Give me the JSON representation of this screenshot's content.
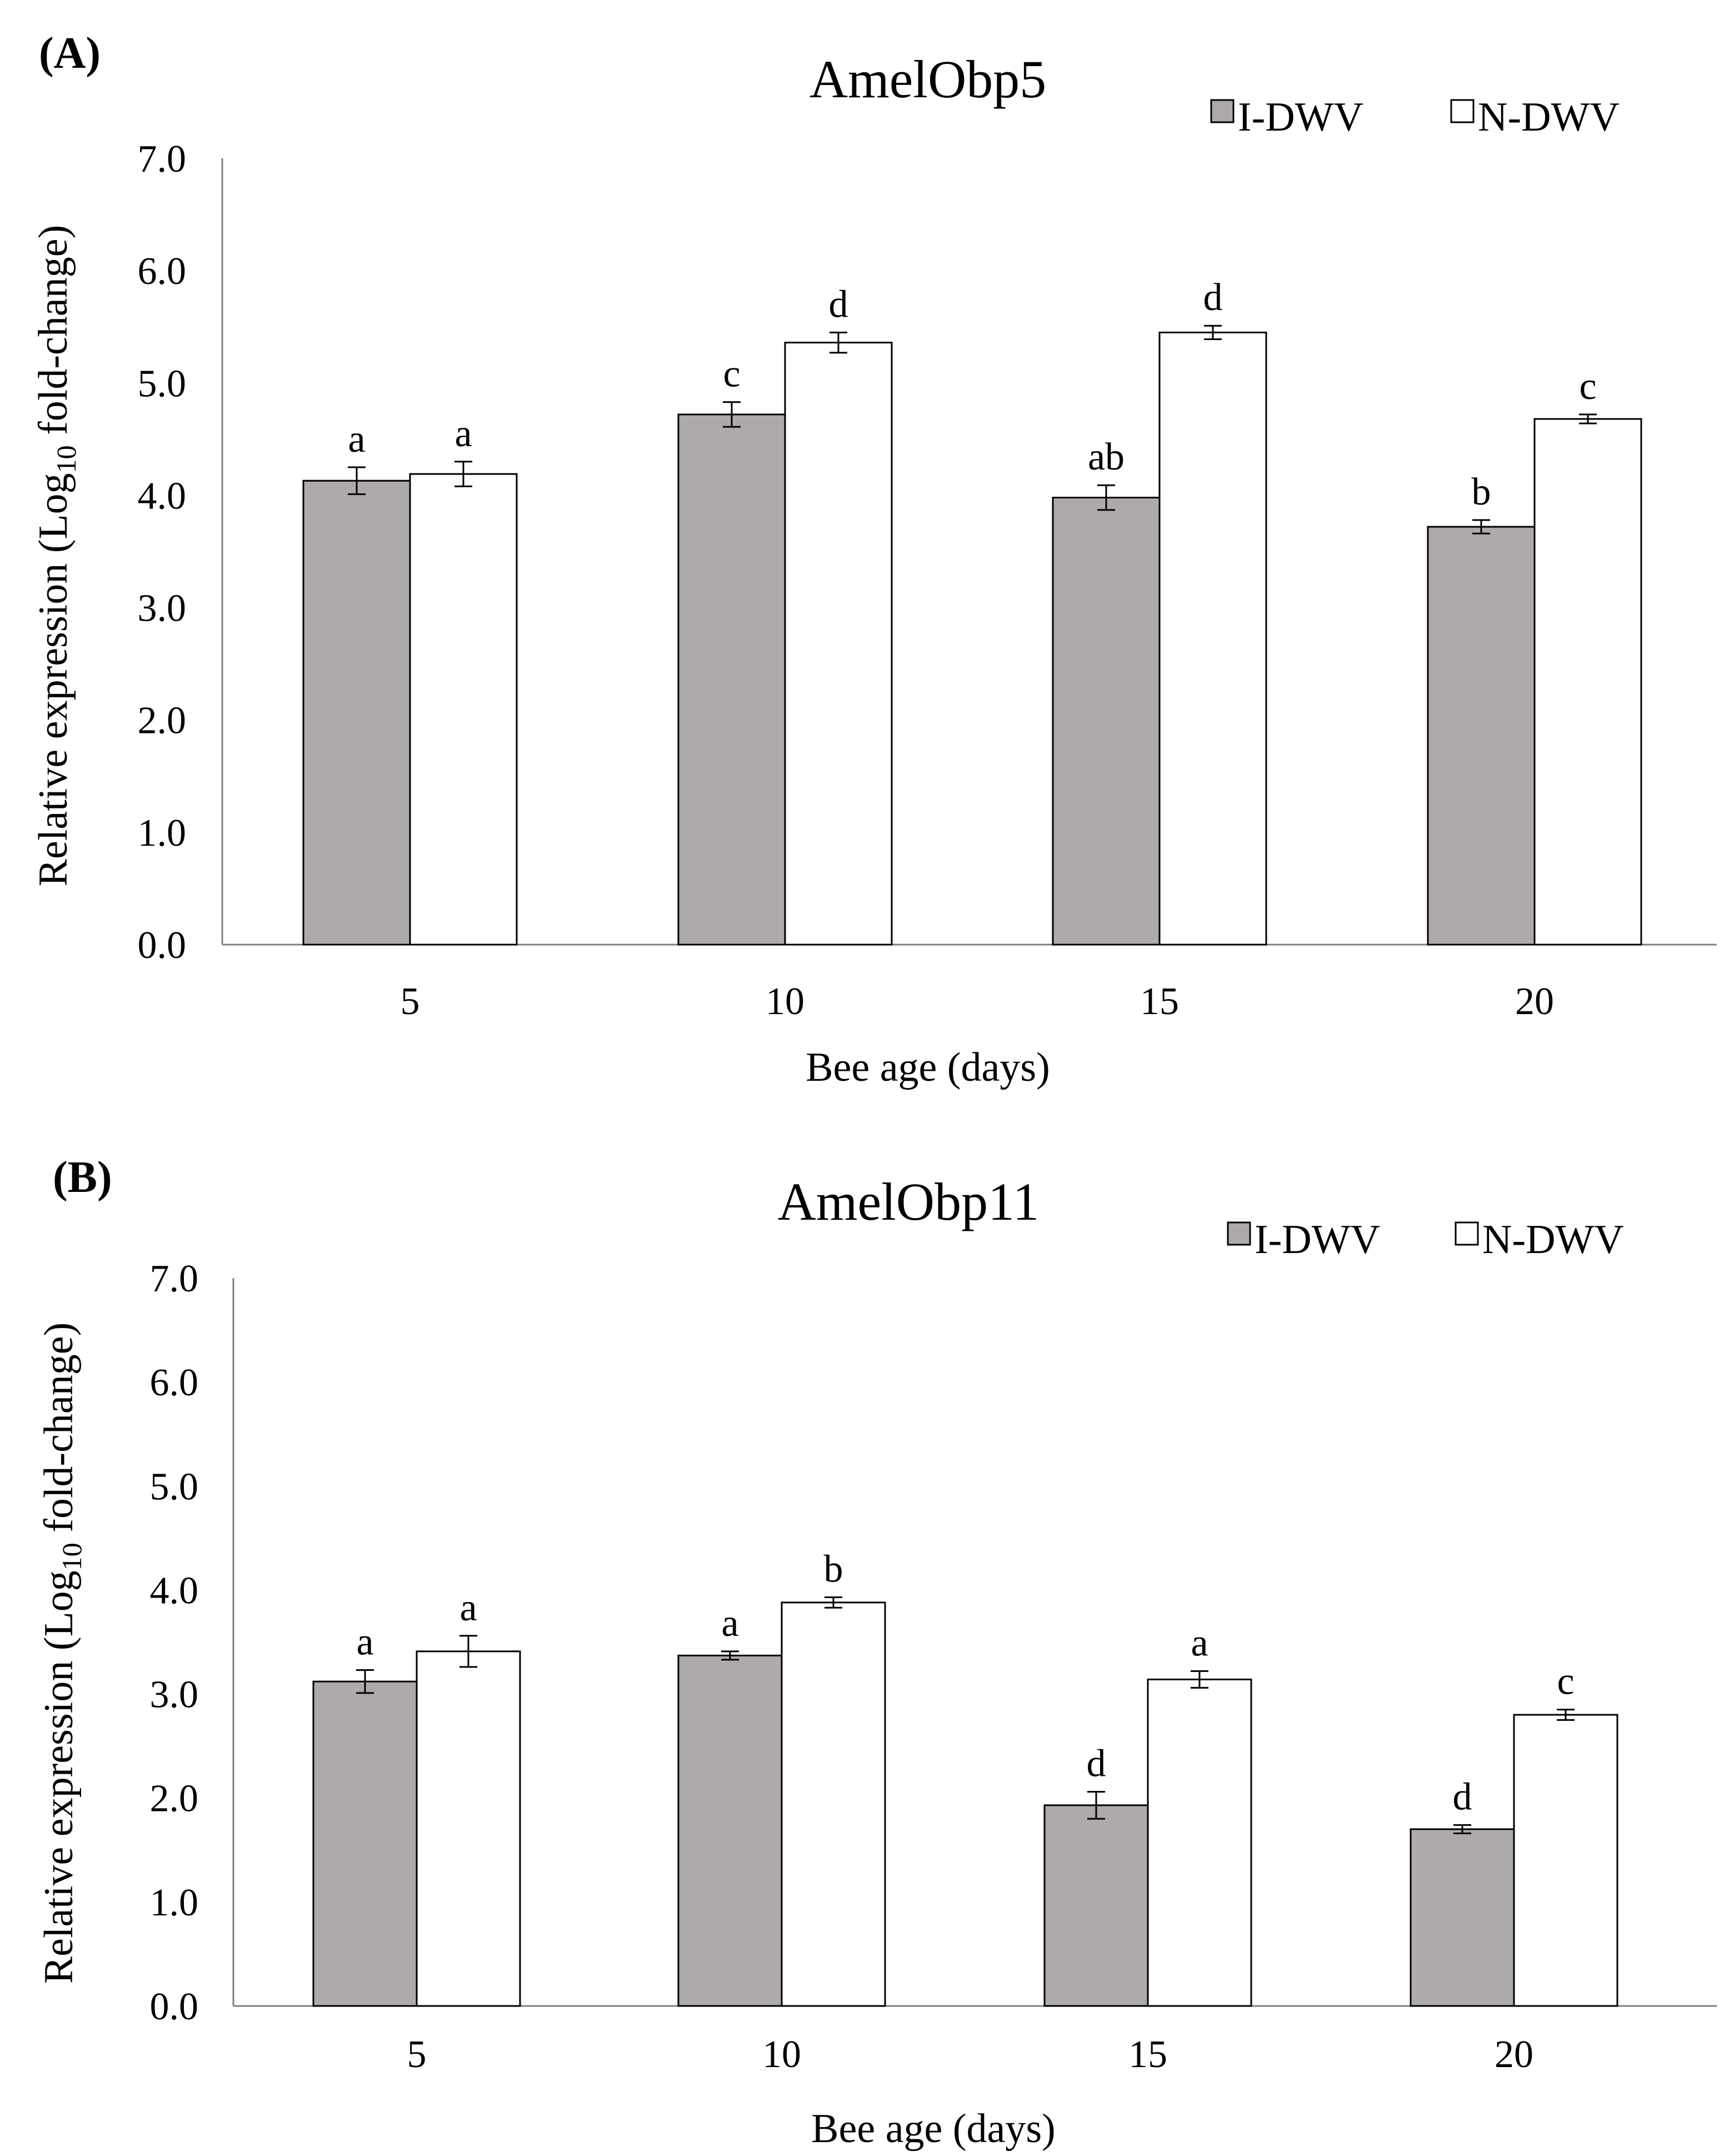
{
  "chart_data": [
    {
      "type": "bar",
      "panel_label": "(A)",
      "title": "AmelObp5",
      "xlabel": "Bee age (days)",
      "ylabel_main": "Relative expression (Log",
      "ylabel_sub": "10",
      "ylabel_tail": " fold-change)",
      "categories": [
        "5",
        "10",
        "15",
        "20"
      ],
      "ylim": [
        0,
        7
      ],
      "yticks": [
        "0.0",
        "1.0",
        "2.0",
        "3.0",
        "4.0",
        "5.0",
        "6.0",
        "7.0"
      ],
      "legend_position": "top-right",
      "grid": false,
      "series": [
        {
          "name": "I-DWV",
          "color": "#aeaaaa",
          "values": [
            4.13,
            4.72,
            3.98,
            3.72
          ],
          "errors": [
            0.12,
            0.11,
            0.11,
            0.06
          ],
          "labels": [
            "a",
            "c",
            "ab",
            "b"
          ]
        },
        {
          "name": "N-DWV",
          "color": "#ffffff",
          "values": [
            4.19,
            5.36,
            5.45,
            4.68
          ],
          "errors": [
            0.11,
            0.09,
            0.06,
            0.04
          ],
          "labels": [
            "a",
            "d",
            "d",
            "c"
          ]
        }
      ]
    },
    {
      "type": "bar",
      "panel_label": "(B)",
      "title": "AmelObp11",
      "xlabel": "Bee age (days)",
      "ylabel_main": "Relative expression (Log",
      "ylabel_sub": "10",
      "ylabel_tail": " fold-change)",
      "categories": [
        "5",
        "10",
        "15",
        "20"
      ],
      "ylim": [
        0,
        7
      ],
      "yticks": [
        "0.0",
        "1.0",
        "2.0",
        "3.0",
        "4.0",
        "5.0",
        "6.0",
        "7.0"
      ],
      "legend_position": "top-right",
      "grid": false,
      "series": [
        {
          "name": "I-DWV",
          "color": "#aeaaaa",
          "values": [
            3.12,
            3.37,
            1.93,
            1.7
          ],
          "errors": [
            0.11,
            0.04,
            0.13,
            0.04
          ],
          "labels": [
            "a",
            "a",
            "d",
            "d"
          ]
        },
        {
          "name": "N-DWV",
          "color": "#ffffff",
          "values": [
            3.41,
            3.88,
            3.14,
            2.8
          ],
          "errors": [
            0.15,
            0.05,
            0.08,
            0.05
          ],
          "labels": [
            "a",
            "b",
            "a",
            "c"
          ]
        }
      ]
    }
  ]
}
